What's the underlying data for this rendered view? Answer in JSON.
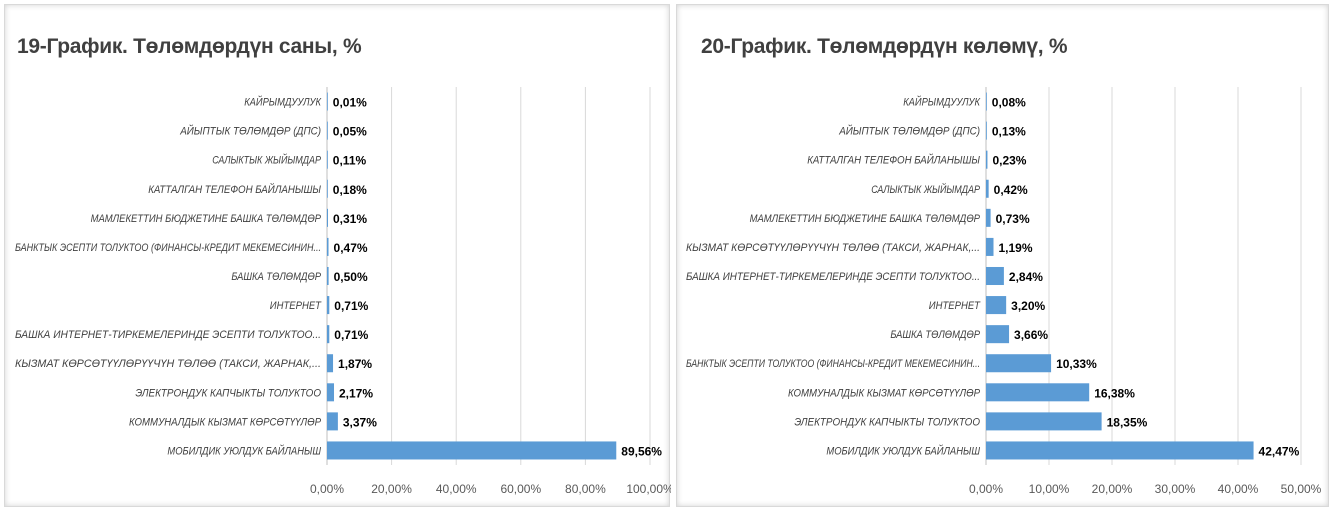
{
  "colors": {
    "bar": "#5b9bd5",
    "grid": "#d9d9d9",
    "text": "#404040"
  },
  "chart_data": [
    {
      "type": "bar",
      "orientation": "horizontal",
      "title": "19-График. Төлөмдөрдүн саны, %",
      "xlim": [
        0,
        100
      ],
      "ticks": [
        "0,00%",
        "20,00%",
        "40,00%",
        "60,00%",
        "80,00%",
        "100,00%"
      ],
      "tick_values": [
        0,
        20,
        40,
        60,
        80,
        100
      ],
      "grid": true,
      "categories": [
        "КАЙРЫМДУУЛУК",
        "АЙЫПТЫК ТӨЛӨМДӨР (ДПС)",
        "САЛЫКТЫК ЖЫЙЫМДАР",
        "КАТТАЛГАН ТЕЛЕФОН БАЙЛАНЫШЫ",
        "МАМЛЕКЕТТИН БЮДЖЕТИНЕ БАШКА ТӨЛӨМДӨР",
        "БАНКТЫК ЭСЕПТИ ТОЛУКТОО (ФИНАНСЫ-КРЕДИТ МЕКЕМЕСИНИН...",
        "БАШКА ТӨЛӨМДӨР",
        "ИНТЕРНЕТ",
        "БАШКА ИНТЕРНЕТ-ТИРКЕМЕЛЕРИНДЕ ЭСЕПТИ ТОЛУКТОО...",
        "КЫЗМАТ КӨРСӨТҮҮЛӨРҮҮЧҮН ТӨЛӨӨ (ТАКСИ, ЖАРНАК,...",
        "ЭЛЕКТРОНДУК КАПЧЫКТЫ ТОЛУКТОО",
        "КОММУНАЛДЫК КЫЗМАТ КӨРСӨТҮҮЛӨР",
        "МОБИЛДИК УЮЛДУК БАЙЛАНЫШ"
      ],
      "values": [
        0.01,
        0.05,
        0.11,
        0.18,
        0.31,
        0.47,
        0.5,
        0.71,
        0.71,
        1.87,
        2.17,
        3.37,
        89.56
      ],
      "labels": [
        "0,01%",
        "0,05%",
        "0,11%",
        "0,18%",
        "0,31%",
        "0,47%",
        "0,50%",
        "0,71%",
        "0,71%",
        "1,87%",
        "2,17%",
        "3,37%",
        "89,56%"
      ]
    },
    {
      "type": "bar",
      "orientation": "horizontal",
      "title": "20-График. Төлөмдөрдүн көлөмү, %",
      "xlim": [
        0,
        50
      ],
      "ticks": [
        "0,00%",
        "10,00%",
        "20,00%",
        "30,00%",
        "40,00%",
        "50,00%"
      ],
      "tick_values": [
        0,
        10,
        20,
        30,
        40,
        50
      ],
      "grid": true,
      "categories": [
        "КАЙРЫМДУУЛУК",
        "АЙЫПТЫК ТӨЛӨМДӨР (ДПС)",
        "КАТТАЛГАН ТЕЛЕФОН БАЙЛАНЫШЫ",
        "САЛЫКТЫК ЖЫЙЫМДАР",
        "МАМЛЕКЕТТИН БЮДЖЕТИНЕ БАШКА ТӨЛӨМДӨР",
        "КЫЗМАТ КӨРСӨТҮҮЛӨРҮҮЧҮН ТӨЛӨӨ (ТАКСИ, ЖАРНАК,...",
        "БАШКА ИНТЕРНЕТ-ТИРКЕМЕЛЕРИНДЕ ЭСЕПТИ ТОЛУКТОО...",
        "ИНТЕРНЕТ",
        "БАШКА ТӨЛӨМДӨР",
        "БАНКТЫК ЭСЕПТИ ТОЛУКТОО (ФИНАНСЫ-КРЕДИТ МЕКЕМЕСИНИН...",
        "КОММУНАЛДЫК КЫЗМАТ КӨРСӨТҮҮЛӨР",
        "ЭЛЕКТРОНДУК КАПЧЫКТЫ ТОЛУКТОО",
        "МОБИЛДИК УЮЛДУК БАЙЛАНЫШ"
      ],
      "values": [
        0.08,
        0.13,
        0.23,
        0.42,
        0.73,
        1.19,
        2.84,
        3.2,
        3.66,
        10.33,
        16.38,
        18.35,
        42.47
      ],
      "labels": [
        "0,08%",
        "0,13%",
        "0,23%",
        "0,42%",
        "0,73%",
        "1,19%",
        "2,84%",
        "3,20%",
        "3,66%",
        "10,33%",
        "16,38%",
        "18,35%",
        "42,47%"
      ]
    }
  ]
}
